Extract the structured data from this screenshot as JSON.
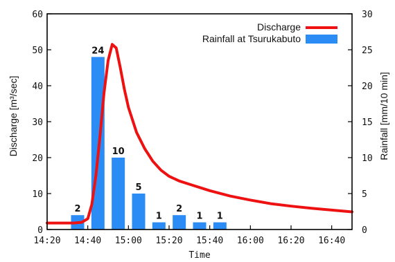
{
  "chart_data": {
    "type": "bar+line",
    "xlabel": "Time",
    "ylabel_left": "Discharge [m³/sec]",
    "ylabel_right": "Rainfall [mm/10 min]",
    "x_ticks": [
      "14:20",
      "14:40",
      "15:00",
      "15:20",
      "15:40",
      "16:00",
      "16:20",
      "16:40"
    ],
    "ylim_left": [
      0,
      60
    ],
    "yticks_left": [
      0,
      10,
      20,
      30,
      40,
      50,
      60
    ],
    "ylim_right": [
      0,
      30
    ],
    "yticks_right": [
      0,
      5,
      10,
      15,
      20,
      25,
      30
    ],
    "legend_position": "top-right",
    "colors": {
      "discharge": "#ee1111",
      "rainfall": "#2b8cf5"
    },
    "rainfall": {
      "name": "Rainfall at Tsurukabuto",
      "times": [
        "14:35",
        "14:45",
        "14:55",
        "15:05",
        "15:15",
        "15:25",
        "15:35",
        "15:45"
      ],
      "values": [
        2,
        24,
        10,
        5,
        1,
        2,
        1,
        1
      ],
      "labels": [
        "2",
        "24",
        "10",
        "5",
        "1",
        "2",
        "1",
        "1"
      ]
    },
    "discharge": {
      "name": "Discharge",
      "points": [
        [
          "14:20",
          1.8
        ],
        [
          "14:33",
          1.8
        ],
        [
          "14:37",
          2.0
        ],
        [
          "14:40",
          3.0
        ],
        [
          "14:42",
          7.0
        ],
        [
          "14:44",
          15.0
        ],
        [
          "14:46",
          26.0
        ],
        [
          "14:48",
          38.0
        ],
        [
          "14:50",
          47.0
        ],
        [
          "14:52",
          51.5
        ],
        [
          "14:54",
          50.5
        ],
        [
          "14:56",
          45.0
        ],
        [
          "14:58",
          39.0
        ],
        [
          "15:00",
          34.0
        ],
        [
          "15:04",
          27.0
        ],
        [
          "15:08",
          22.5
        ],
        [
          "15:12",
          19.0
        ],
        [
          "15:16",
          16.5
        ],
        [
          "15:20",
          14.8
        ],
        [
          "15:25",
          13.5
        ],
        [
          "15:30",
          12.6
        ],
        [
          "15:40",
          10.8
        ],
        [
          "15:50",
          9.3
        ],
        [
          "16:00",
          8.2
        ],
        [
          "16:10",
          7.2
        ],
        [
          "16:20",
          6.5
        ],
        [
          "16:30",
          5.9
        ],
        [
          "16:40",
          5.4
        ],
        [
          "16:50",
          4.9
        ]
      ]
    }
  }
}
